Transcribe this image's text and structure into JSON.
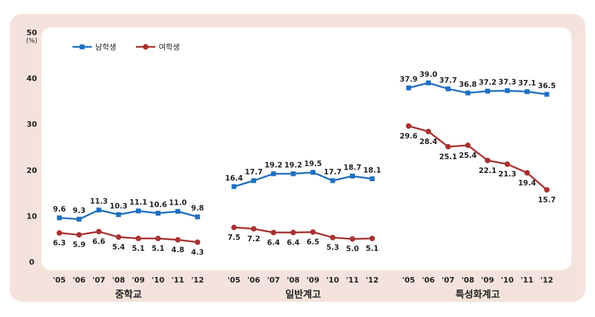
{
  "chart_data": {
    "type": "line",
    "y_unit": "(%)",
    "ylim": [
      0,
      50
    ],
    "yticks": [
      "0",
      "10",
      "20",
      "30",
      "40",
      "50"
    ],
    "legend_position": "top-left",
    "colors": {
      "male": "#1f6fc0",
      "female": "#a83232",
      "background": "#f4e3dc",
      "plot": "#ffffff"
    },
    "series_names": [
      "남학생",
      "여학생"
    ],
    "groups": [
      {
        "label": "중학교",
        "categories": [
          "'05",
          "'06",
          "'07",
          "'08",
          "'09",
          "'10",
          "'11",
          "'12"
        ],
        "series": [
          {
            "name": "남학생",
            "values": [
              9.6,
              9.3,
              11.3,
              10.3,
              11.1,
              10.6,
              11.0,
              9.8
            ],
            "labels": [
              "9.6",
              "9.3",
              "11.3",
              "10.3",
              "11.1",
              "10.6",
              "11.0",
              "9.8"
            ]
          },
          {
            "name": "여학생",
            "values": [
              6.3,
              5.9,
              6.6,
              5.4,
              5.1,
              5.1,
              4.8,
              4.3
            ],
            "labels": [
              "6.3",
              "5.9",
              "6.6",
              "5.4",
              "5.1",
              "5.1",
              "4.8",
              "4.3"
            ]
          }
        ]
      },
      {
        "label": "일반계고",
        "categories": [
          "'05",
          "'06",
          "'07",
          "'08",
          "'09",
          "'10",
          "'11",
          "'12"
        ],
        "series": [
          {
            "name": "남학생",
            "values": [
              16.4,
              17.7,
              19.2,
              19.2,
              19.5,
              17.7,
              18.7,
              18.1
            ],
            "labels": [
              "16.4",
              "17.7",
              "19.2",
              "19.2",
              "19.5",
              "17.7",
              "18.7",
              "18.1"
            ]
          },
          {
            "name": "여학생",
            "values": [
              7.5,
              7.2,
              6.4,
              6.4,
              6.5,
              5.3,
              5.0,
              5.1
            ],
            "labels": [
              "7.5",
              "7.2",
              "6.4",
              "6.4",
              "6.5",
              "5.3",
              "5.0",
              "5.1"
            ]
          }
        ]
      },
      {
        "label": "특성화계고",
        "categories": [
          "'05",
          "'06",
          "'07",
          "'08",
          "'09",
          "'10",
          "'11",
          "'12"
        ],
        "series": [
          {
            "name": "남학생",
            "values": [
              37.9,
              39.0,
              37.7,
              36.8,
              37.2,
              37.3,
              37.1,
              36.5
            ],
            "labels": [
              "37.9",
              "39.0",
              "37.7",
              "36.8",
              "37.2",
              "37.3",
              "37.1",
              "36.5"
            ]
          },
          {
            "name": "여학생",
            "values": [
              29.6,
              28.4,
              25.1,
              25.4,
              22.1,
              21.3,
              19.4,
              15.7
            ],
            "labels": [
              "29.6",
              "28.4",
              "25.1",
              "25.4",
              "22.1",
              "21.3",
              "19.4",
              "15.7"
            ]
          }
        ]
      }
    ]
  }
}
